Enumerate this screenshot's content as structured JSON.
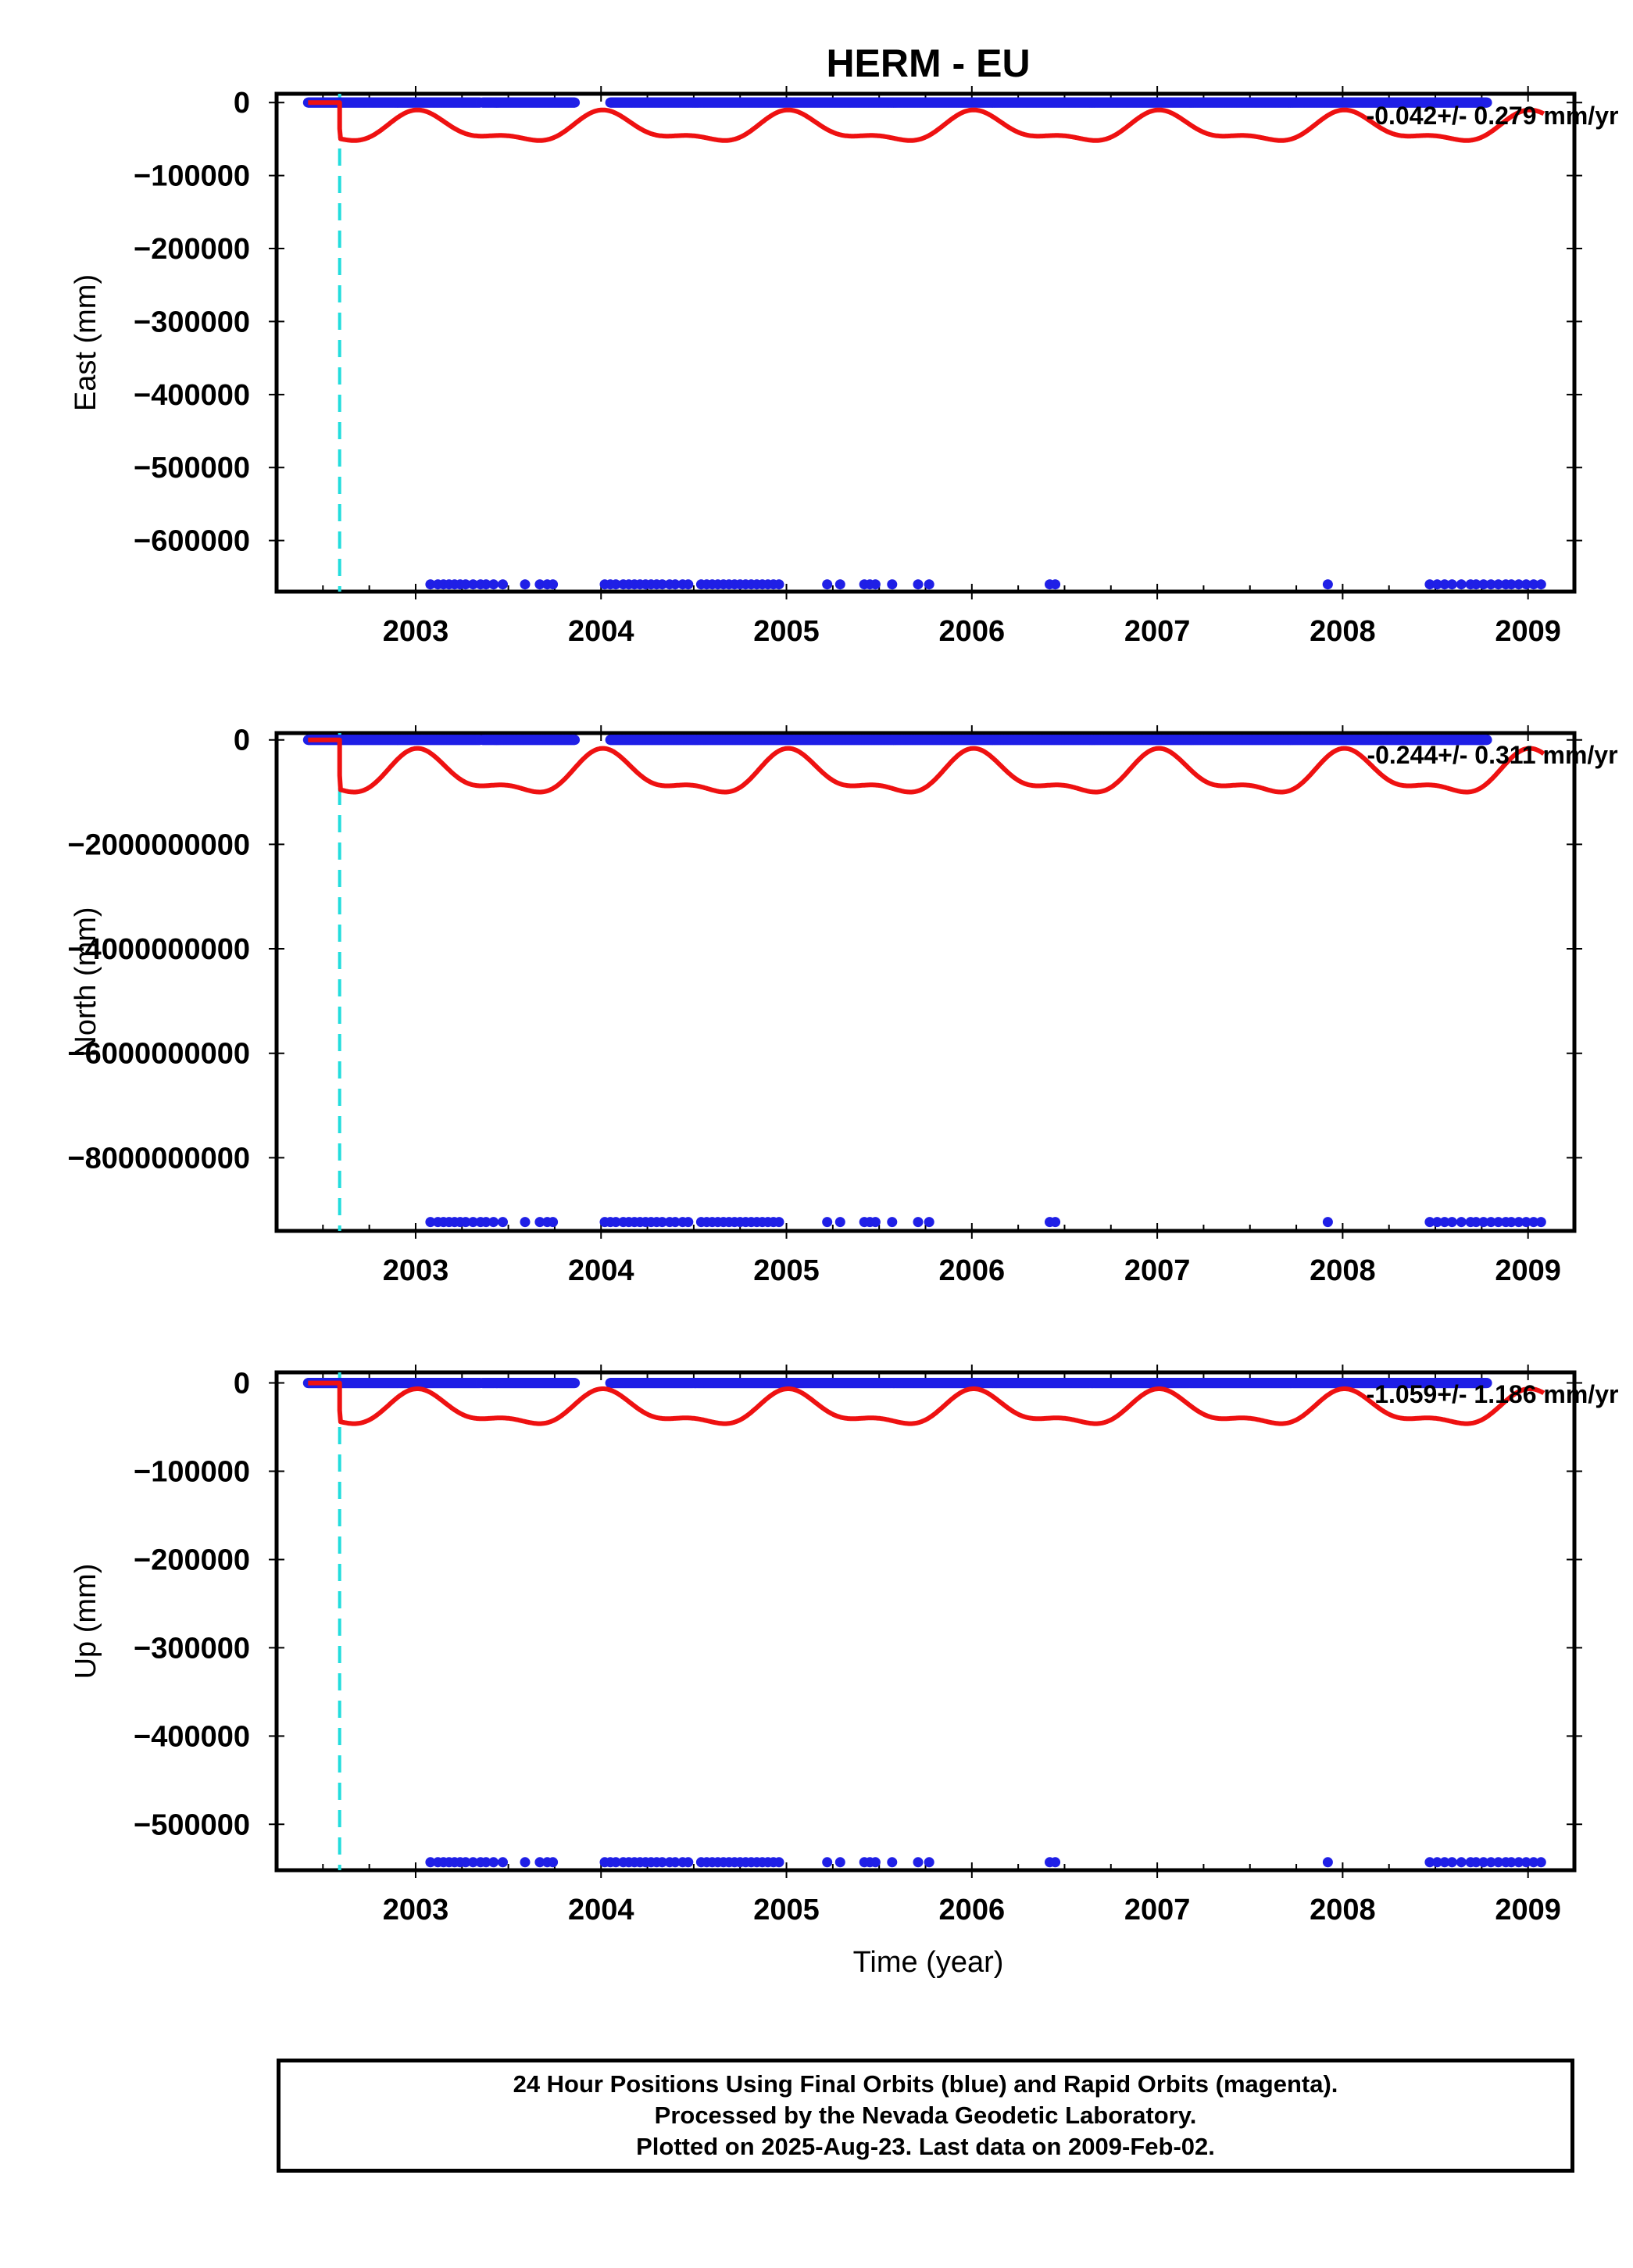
{
  "title": "HERM - EU",
  "xlabel": "Time (year)",
  "footer": {
    "line1": "24 Hour Positions Using Final Orbits (blue) and Rapid Orbits (magenta).",
    "line2": "Processed by the Nevada Geodetic Laboratory.",
    "line3": "Plotted on 2025-Aug-23. Last data on 2009-Feb-02."
  },
  "colors": {
    "final_orbits": "#1f1fe6",
    "model": "#ee1111",
    "event": "#22dddd",
    "frame": "#000000"
  },
  "chart_data": [
    {
      "type": "scatter",
      "ylabel": "East (mm)",
      "rate_text": "-0.042+/- 0.279 mm/yr",
      "xlim": [
        2002.25,
        2009.25
      ],
      "ylim": [
        -670000,
        12000
      ],
      "x_ticks": [
        2003,
        2004,
        2005,
        2006,
        2007,
        2008,
        2009
      ],
      "y_ticks": [
        0,
        -100000,
        -200000,
        -300000,
        -400000,
        -500000,
        -600000
      ],
      "y_tick_labels": [
        "0",
        "−100000",
        "−200000",
        "−300000",
        "−400000",
        "−500000",
        "−600000"
      ],
      "outlier_value": -660000,
      "model_amplitude": 18000,
      "model_offset": -36000,
      "event_x": 2002.59
    },
    {
      "type": "scatter",
      "ylabel": "North (mm)",
      "rate_text": "-0.244+/- 0.311 mm/yr",
      "xlim": [
        2002.25,
        2009.25
      ],
      "ylim": [
        -9400000000,
        130000000
      ],
      "x_ticks": [
        2003,
        2004,
        2005,
        2006,
        2007,
        2008,
        2009
      ],
      "y_ticks": [
        0,
        -2000000000,
        -4000000000,
        -6000000000,
        -8000000000
      ],
      "y_tick_labels": [
        "0",
        "−2000000000",
        "−4000000000",
        "−6000000000",
        "−8000000000"
      ],
      "outlier_value": -9230000000,
      "model_amplitude": 360000000,
      "model_offset": -680000000,
      "event_x": 2002.59
    },
    {
      "type": "scatter",
      "ylabel": "Up (mm)",
      "rate_text": "-1.059+/- 1.186 mm/yr",
      "xlim": [
        2002.25,
        2009.25
      ],
      "ylim": [
        -552000,
        12000
      ],
      "x_ticks": [
        2003,
        2004,
        2005,
        2006,
        2007,
        2008,
        2009
      ],
      "y_ticks": [
        0,
        -100000,
        -200000,
        -300000,
        -400000,
        -500000
      ],
      "y_tick_labels": [
        "0",
        "−100000",
        "−200000",
        "−300000",
        "−400000",
        "−500000"
      ],
      "outlier_value": -543000,
      "model_amplitude": 17000,
      "model_offset": -31000,
      "event_x": 2002.59
    }
  ],
  "data_segments": [
    [
      2002.42,
      2003.35
    ],
    [
      2003.36,
      2003.86
    ],
    [
      2004.05,
      2008.78
    ]
  ],
  "outlier_epochs": [
    2003.08,
    2003.12,
    2003.15,
    2003.18,
    2003.21,
    2003.24,
    2003.27,
    2003.31,
    2003.35,
    2003.38,
    2003.42,
    2003.47,
    2003.59,
    2003.67,
    2003.71,
    2003.74,
    2004.02,
    2004.05,
    2004.08,
    2004.12,
    2004.15,
    2004.18,
    2004.21,
    2004.24,
    2004.27,
    2004.3,
    2004.33,
    2004.37,
    2004.4,
    2004.44,
    2004.47,
    2004.54,
    2004.57,
    2004.6,
    2004.63,
    2004.66,
    2004.69,
    2004.72,
    2004.75,
    2004.78,
    2004.81,
    2004.84,
    2004.87,
    2004.9,
    2004.93,
    2004.96,
    2005.22,
    2005.29,
    2005.42,
    2005.45,
    2005.48,
    2005.57,
    2005.71,
    2005.77,
    2006.42,
    2006.45,
    2007.92,
    2008.47,
    2008.51,
    2008.55,
    2008.59,
    2008.64,
    2008.69,
    2008.72,
    2008.76,
    2008.8,
    2008.84,
    2008.88,
    2008.91,
    2008.95,
    2008.99,
    2009.03,
    2009.07
  ]
}
